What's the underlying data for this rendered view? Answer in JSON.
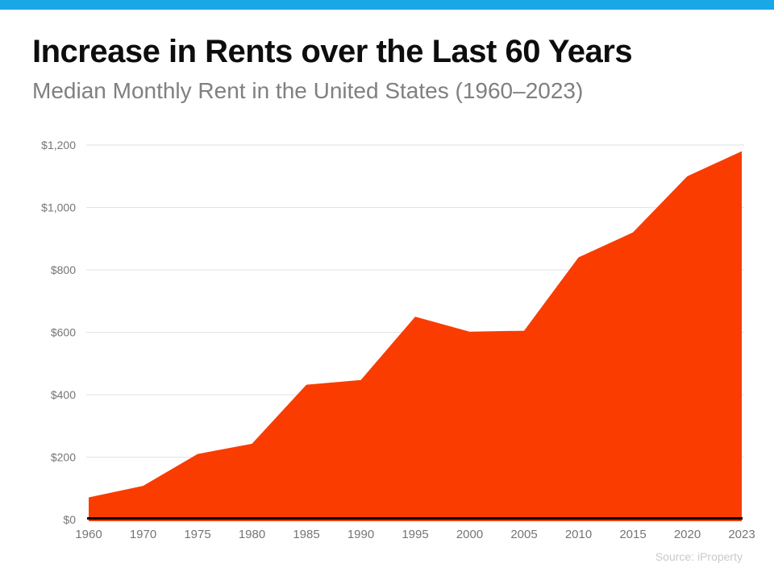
{
  "colors": {
    "accent_blue": "#1aa7e8",
    "area": "#fa3c00",
    "title_text": "#0d0d0d",
    "subtitle_text": "#808080",
    "axis_label": "#757575",
    "gridline": "#e2e2e2",
    "axis_line": "#000000",
    "source_text": "#c9c9c9"
  },
  "header": {
    "title": "Increase in Rents over the Last 60 Years",
    "subtitle": "Median Monthly Rent in the United States (1960–2023)"
  },
  "chart_data": {
    "type": "area",
    "title": "Increase in Rents over the Last 60 Years",
    "subtitle": "Median Monthly Rent in the United States (1960–2023)",
    "categories": [
      "1960",
      "1970",
      "1975",
      "1980",
      "1985",
      "1990",
      "1995",
      "2000",
      "2005",
      "2010",
      "2015",
      "2020",
      "2023"
    ],
    "series": [
      {
        "name": "Median Monthly Rent (USD)",
        "values": [
          71,
          108,
          210,
          243,
          432,
          447,
          650,
          602,
          605,
          840,
          920,
          1100,
          1180
        ]
      }
    ],
    "ylim": [
      0,
      1200
    ],
    "yticks": {
      "values": [
        0,
        200,
        400,
        600,
        800,
        1000,
        1200
      ],
      "labels": [
        "$0",
        "$200",
        "$400",
        "$600",
        "$800",
        "$1,000",
        "$1,200"
      ]
    },
    "grid": "horizontal",
    "legend": "none",
    "area_color": "#fa3c00",
    "xlabel": "",
    "ylabel": ""
  },
  "footer": {
    "source": "Source: iProperty"
  }
}
